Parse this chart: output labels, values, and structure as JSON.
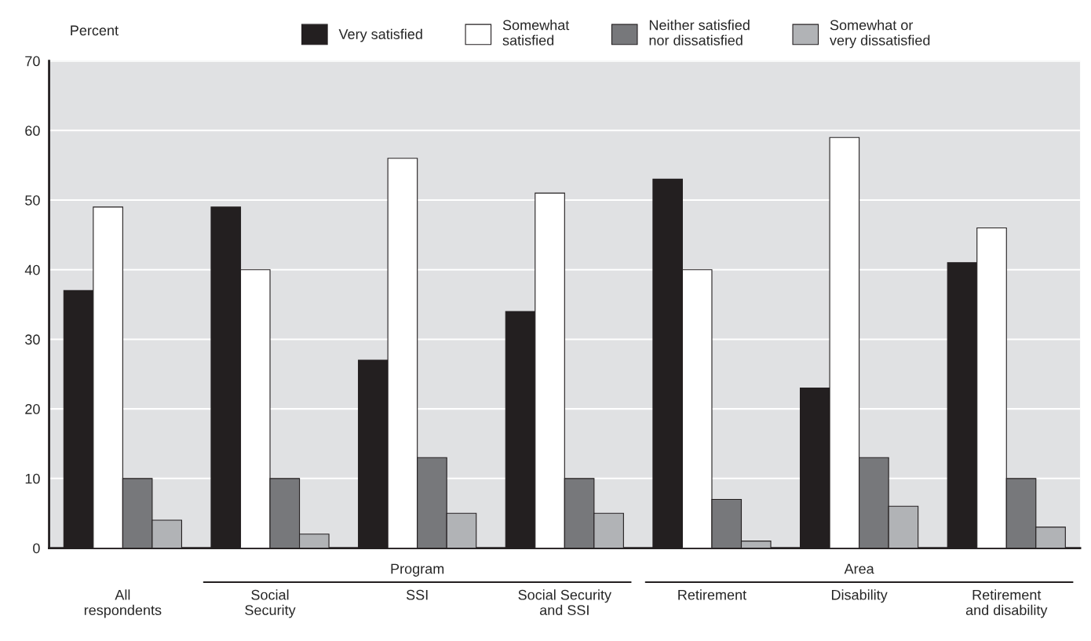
{
  "chart_data": {
    "type": "bar",
    "ylabel": "Percent",
    "categories": [
      "All\nrespondents",
      "Social\nSecurity",
      "SSI",
      "Social Security\nand SSI",
      "Retirement",
      "Disability",
      "Retirement\nand disability"
    ],
    "series": [
      {
        "name": "Very satisfied",
        "color": "#231f20",
        "values": [
          37,
          49,
          27,
          34,
          53,
          23,
          41
        ]
      },
      {
        "name": "Somewhat\nsatisfied",
        "color": "#ffffff",
        "values": [
          49,
          40,
          56,
          51,
          40,
          59,
          46
        ]
      },
      {
        "name": "Neither satisfied\nnor dissatisfied",
        "color": "#77787b",
        "values": [
          10,
          10,
          13,
          10,
          7,
          13,
          10
        ]
      },
      {
        "name": "Somewhat or\nvery dissatisfied",
        "color": "#b1b3b6",
        "values": [
          4,
          2,
          5,
          5,
          1,
          6,
          3
        ]
      }
    ],
    "ylim": [
      0,
      70
    ],
    "yticks": [
      0,
      10,
      20,
      30,
      40,
      50,
      60,
      70
    ],
    "grid": "y",
    "legend": "top",
    "annotations": [
      "Program",
      "Area"
    ]
  }
}
